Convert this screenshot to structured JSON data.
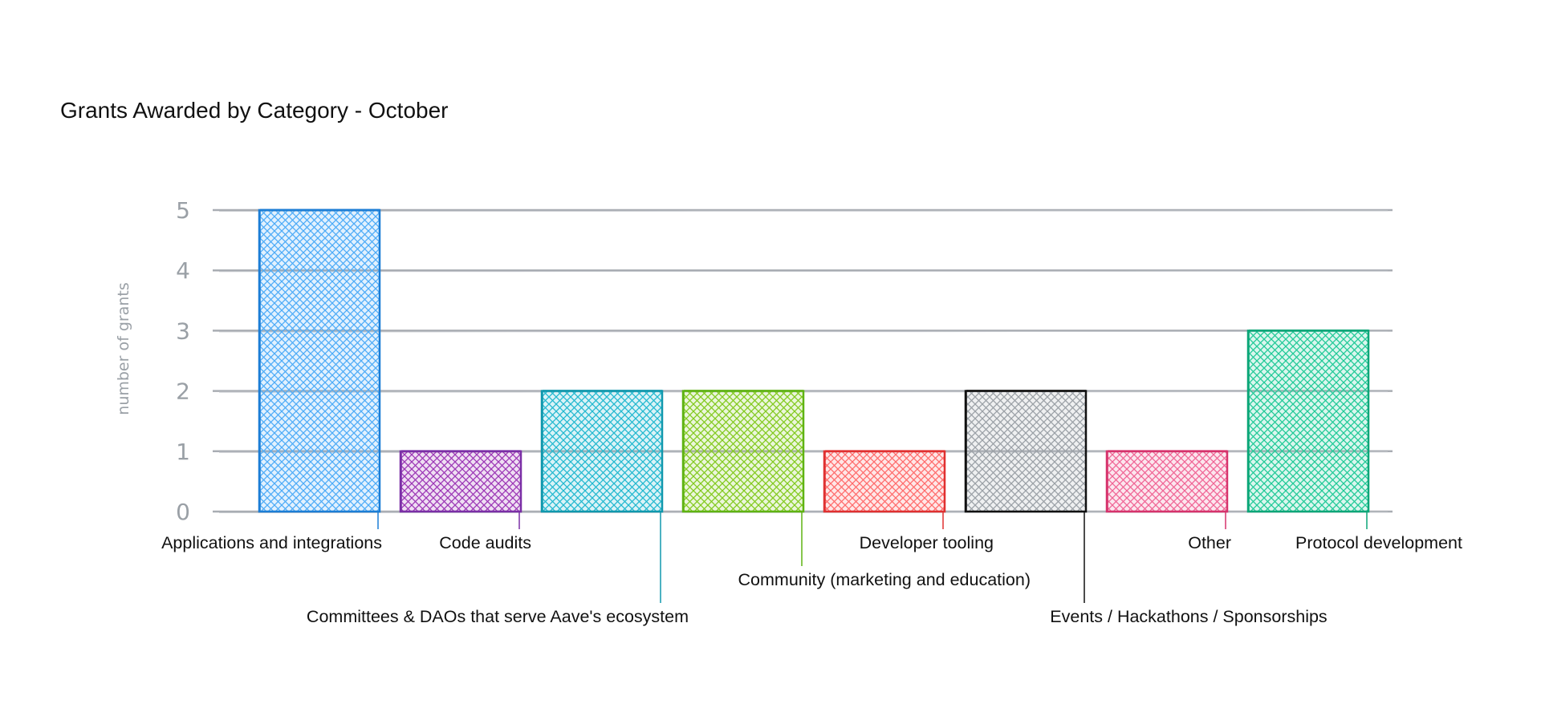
{
  "chart_data": {
    "type": "bar",
    "title": "Grants Awarded by Category - October",
    "xlabel": "",
    "ylabel": "number of grants",
    "ylim": [
      0,
      5
    ],
    "yticks": [
      0,
      1,
      2,
      3,
      4,
      5
    ],
    "grid": true,
    "categories": [
      "Applications and integrations",
      "Code audits",
      "Committees & DAOs that serve Aave's ecosystem",
      "Community (marketing and education)",
      "Developer tooling",
      "Events / Hackathons / Sponsorships",
      "Other",
      "Protocol development"
    ],
    "values": [
      5,
      1,
      2,
      2,
      1,
      2,
      1,
      3
    ],
    "colors": [
      "#1c7ed6",
      "#7b2fa6",
      "#1098ad",
      "#5fb313",
      "#e03131",
      "#111111",
      "#d6336c",
      "#0ca678"
    ],
    "fill_colors": [
      "#4dabf7",
      "#9c36b5",
      "#22b8cf",
      "#82c91e",
      "#ff6b6b",
      "#9aa0a6",
      "#f06595",
      "#20c997"
    ]
  }
}
